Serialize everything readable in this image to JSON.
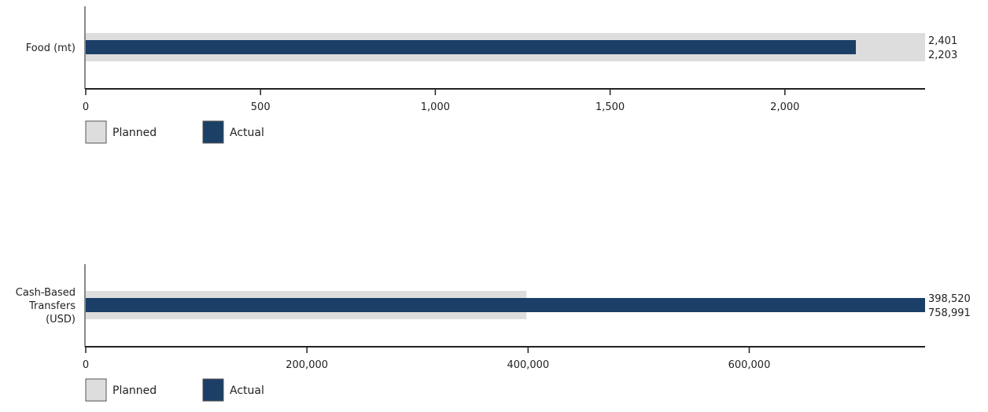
{
  "chart_data": [
    {
      "type": "bar",
      "orientation": "horizontal",
      "categories": [
        "Food (mt)"
      ],
      "category_lines": [
        [
          "Food (mt)"
        ]
      ],
      "series": [
        {
          "name": "Planned",
          "values": [
            2401
          ],
          "labels": [
            "2,401"
          ],
          "color": "#dddddd"
        },
        {
          "name": "Actual",
          "values": [
            2203
          ],
          "labels": [
            "2,203"
          ],
          "color": "#1b3f66"
        }
      ],
      "xlim": [
        0,
        2401
      ],
      "ticks": [
        0,
        500,
        1000,
        1500,
        2000
      ],
      "tick_labels": [
        "0",
        "500",
        "1,000",
        "1,500",
        "2,000"
      ],
      "grid": false,
      "legend": "bottom-left"
    },
    {
      "type": "bar",
      "orientation": "horizontal",
      "categories": [
        "Cash-Based Transfers (USD)"
      ],
      "category_lines": [
        [
          "Cash-Based",
          "Transfers",
          "(USD)"
        ]
      ],
      "series": [
        {
          "name": "Planned",
          "values": [
            398520
          ],
          "labels": [
            "398,520"
          ],
          "color": "#dddddd"
        },
        {
          "name": "Actual",
          "values": [
            758991
          ],
          "labels": [
            "758,991"
          ],
          "color": "#1b3f66"
        }
      ],
      "xlim": [
        0,
        758991
      ],
      "ticks": [
        0,
        200000,
        400000,
        600000
      ],
      "tick_labels": [
        "0",
        "200,000",
        "400,000",
        "600,000"
      ],
      "grid": false,
      "legend": "bottom-left"
    }
  ]
}
